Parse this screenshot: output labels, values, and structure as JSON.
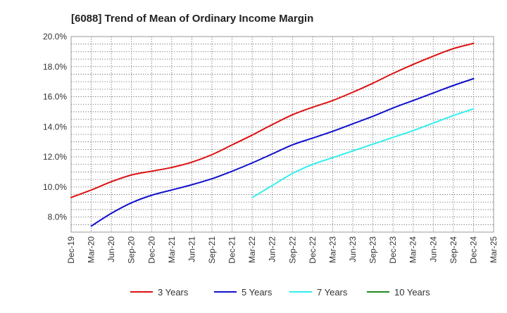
{
  "chart_data": {
    "type": "line",
    "title": "[6088]  Trend of Mean of Ordinary Income Margin",
    "xlabel": "",
    "ylabel": "",
    "x": [
      "Dec-19",
      "Mar-20",
      "Jun-20",
      "Sep-20",
      "Dec-20",
      "Mar-21",
      "Jun-21",
      "Sep-21",
      "Dec-21",
      "Mar-22",
      "Jun-22",
      "Sep-22",
      "Dec-22",
      "Mar-23",
      "Jun-23",
      "Sep-23",
      "Dec-23",
      "Mar-24",
      "Jun-24",
      "Sep-24",
      "Dec-24",
      "Mar-25"
    ],
    "ylim": [
      7.0,
      20.0
    ],
    "yticks": [
      8.0,
      10.0,
      12.0,
      14.0,
      16.0,
      18.0,
      20.0
    ],
    "ytick_labels": [
      "8.0%",
      "10.0%",
      "12.0%",
      "14.0%",
      "16.0%",
      "18.0%",
      "20.0%"
    ],
    "grid": true,
    "legend_position": "bottom",
    "series": [
      {
        "name": "3 Years",
        "color": "#dd1111",
        "values": [
          9.3,
          9.8,
          10.35,
          10.8,
          11.05,
          11.3,
          11.65,
          12.15,
          12.8,
          13.45,
          14.15,
          14.8,
          15.3,
          15.75,
          16.3,
          16.9,
          17.55,
          18.15,
          18.7,
          19.2,
          19.55,
          null
        ]
      },
      {
        "name": "5 Years",
        "color": "#1111cc",
        "values": [
          null,
          7.4,
          8.25,
          8.95,
          9.45,
          9.8,
          10.15,
          10.55,
          11.05,
          11.6,
          12.2,
          12.8,
          13.25,
          13.7,
          14.2,
          14.7,
          15.25,
          15.75,
          16.25,
          16.75,
          17.2,
          null
        ]
      },
      {
        "name": "7 Years",
        "color": "#33eeee",
        "values": [
          null,
          null,
          null,
          null,
          null,
          null,
          null,
          null,
          null,
          9.3,
          10.1,
          10.9,
          11.5,
          11.95,
          12.4,
          12.85,
          13.3,
          13.75,
          14.25,
          14.75,
          15.2,
          null
        ]
      },
      {
        "name": "10 Years",
        "color": "#228b22",
        "values": [
          null,
          null,
          null,
          null,
          null,
          null,
          null,
          null,
          null,
          null,
          null,
          null,
          null,
          null,
          null,
          null,
          null,
          null,
          null,
          null,
          null,
          null
        ]
      }
    ]
  }
}
